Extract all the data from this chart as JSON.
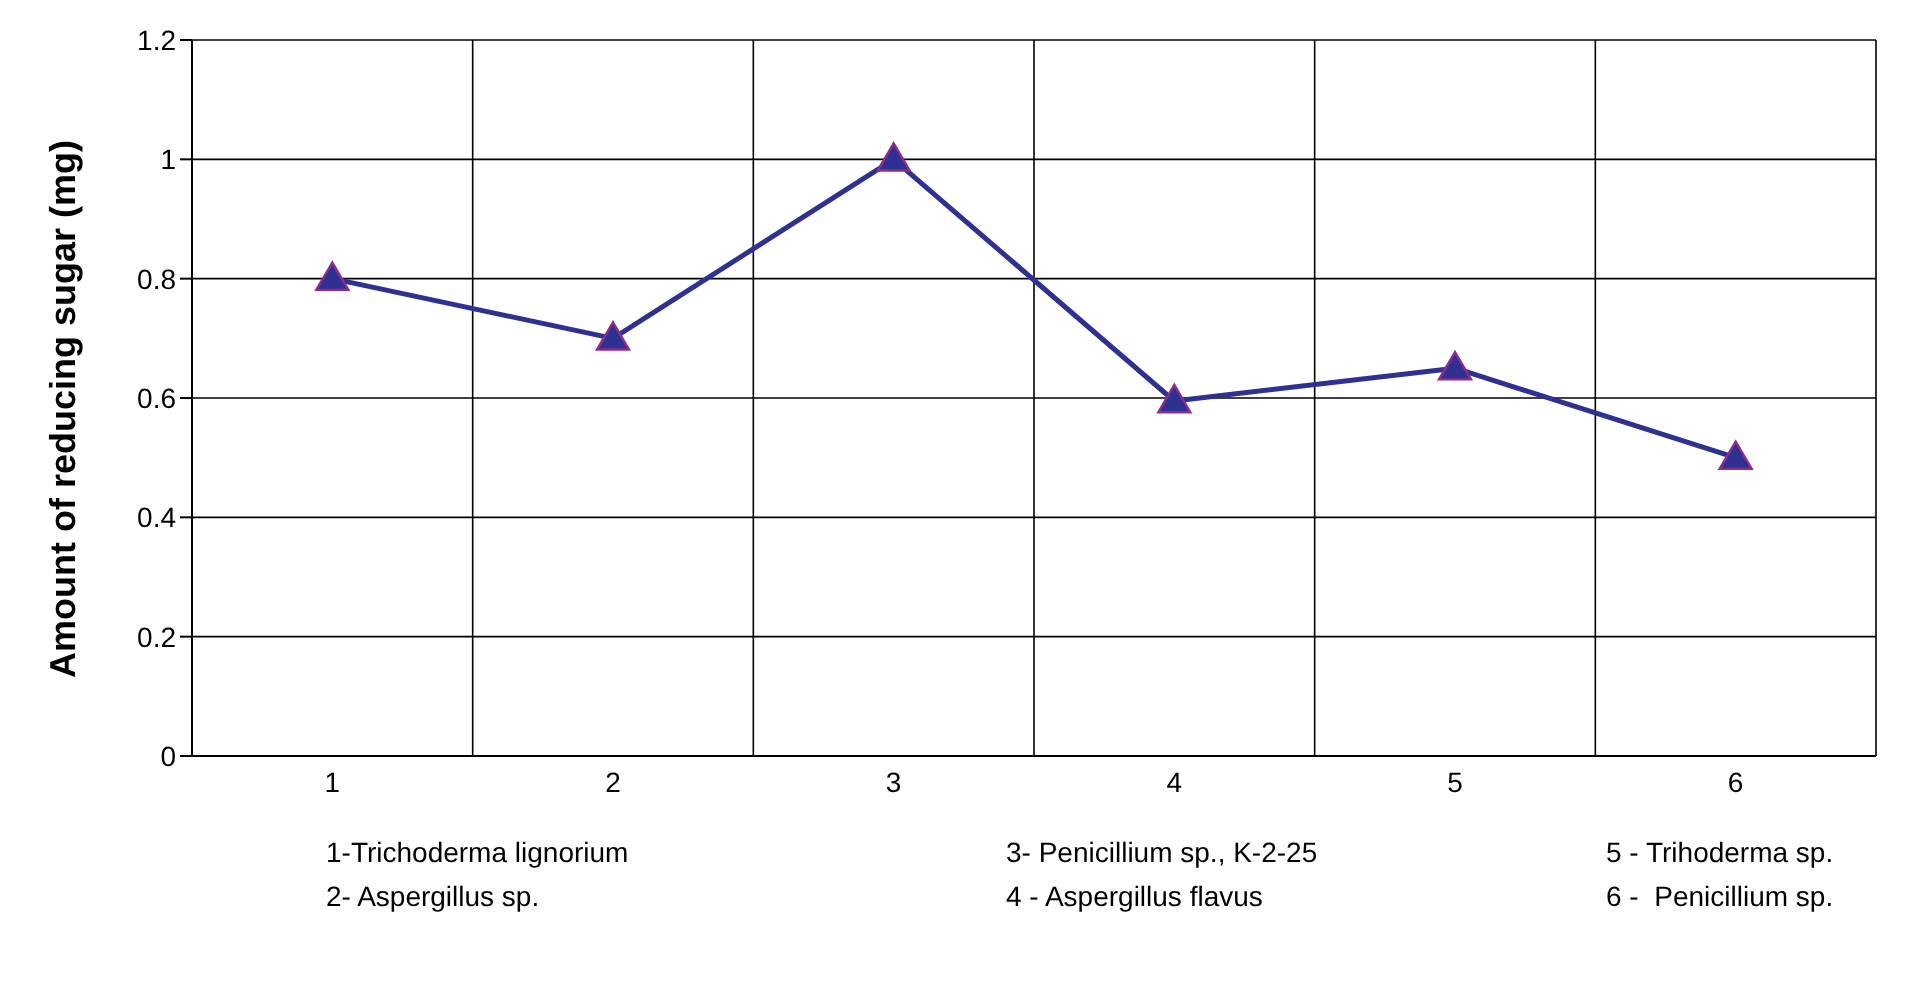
{
  "chart_data": {
    "type": "line",
    "ylabel": "Amount of reducing sugar (mg)",
    "categories": [
      "1",
      "2",
      "3",
      "4",
      "5",
      "6"
    ],
    "series": [
      {
        "color": "#2e3192",
        "values": [
          0.8,
          0.7,
          1.0,
          0.595,
          0.65,
          0.5
        ]
      }
    ],
    "ylim": [
      0,
      1.2
    ],
    "yticks": [
      0,
      0.2,
      0.4,
      0.6,
      0.8,
      1,
      1.2
    ],
    "grid": true,
    "marker": "triangle",
    "line_style": "solid",
    "annotations": [
      "1-Trichoderma lignorium",
      "3- Penicillium sp., K-2-25",
      "5 - Trihoderma sp.",
      "2- Aspergillus sp.",
      "4 - Aspergillus flavus",
      "6 -  Penicillium sp."
    ]
  }
}
